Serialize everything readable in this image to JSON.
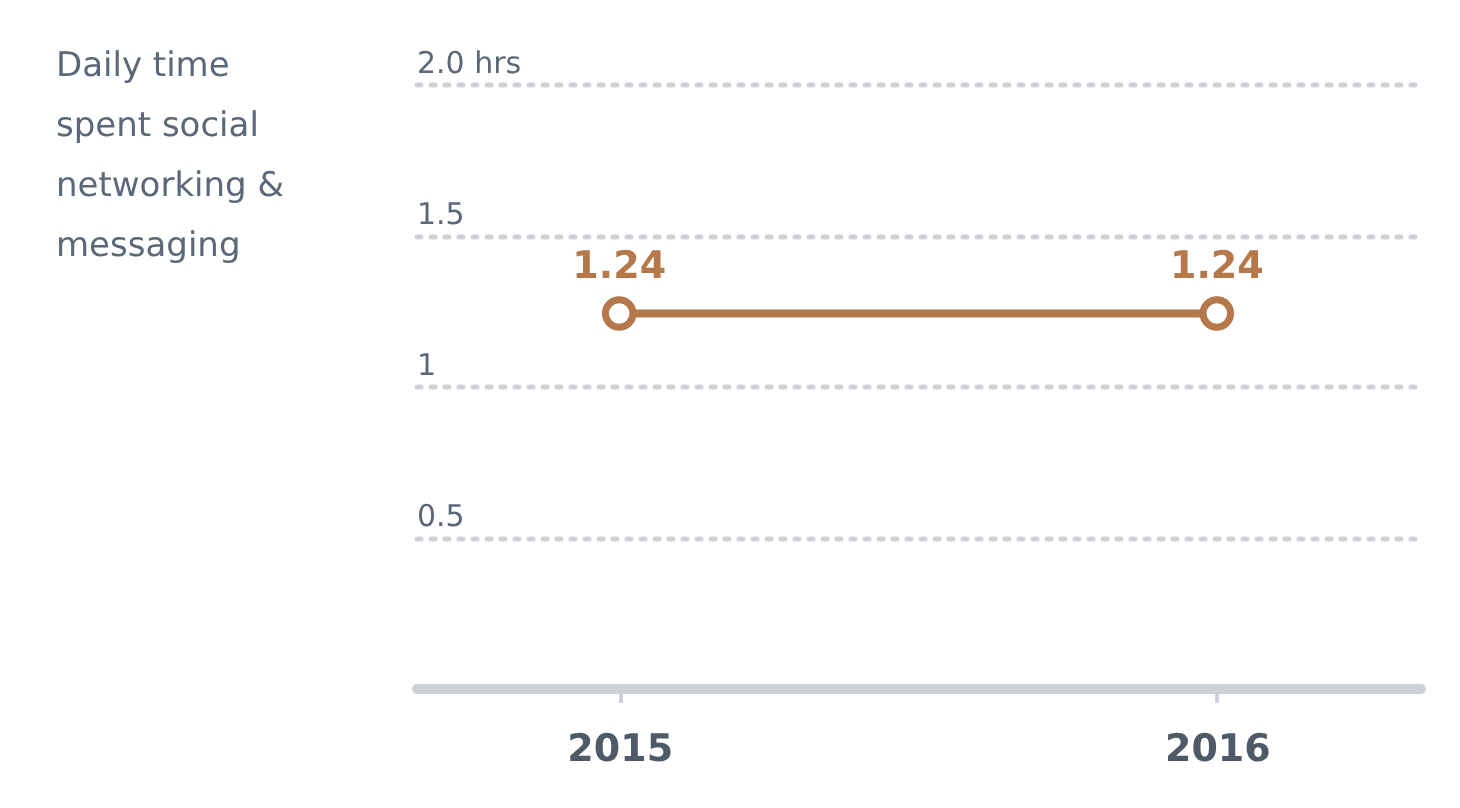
{
  "chart_data": {
    "type": "line",
    "title": "Daily time spent social networking & messaging",
    "categories": [
      "2015",
      "2016"
    ],
    "series": [
      {
        "color": "#b5784a",
        "values": [
          1.24,
          1.24
        ]
      }
    ],
    "ylim": [
      0,
      2
    ],
    "yticks": [
      {
        "value": 0,
        "label": null
      },
      0.5,
      1,
      1.5,
      {
        "value": 2,
        "label": "2.0 hrs"
      }
    ],
    "grid": "y",
    "marker": "circle",
    "line_style": "solid",
    "data_labels": true
  }
}
